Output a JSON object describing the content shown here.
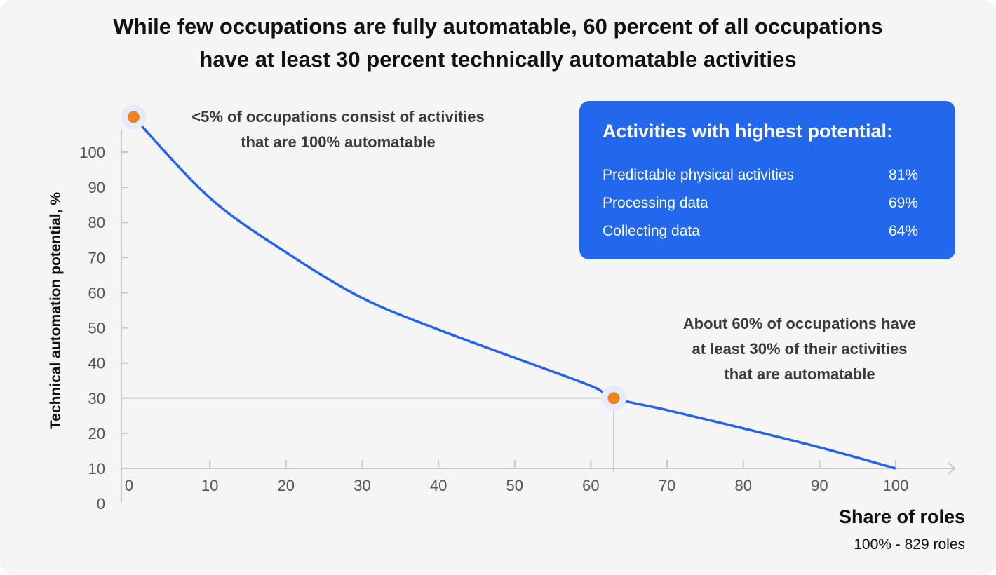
{
  "title_lines": [
    "While few occupations are fully automatable, 60 percent of all occupations",
    "have at least 30 percent technically automatable activities"
  ],
  "chart_data": {
    "type": "line",
    "title": "While few occupations are fully automatable, 60 percent of all occupations have at least 30 percent technically automatable activities",
    "xlabel": "Share of roles",
    "xlabel_sub": "100% - 829 roles",
    "ylabel": "Technical automation potential, %",
    "xlim": [
      0,
      100
    ],
    "ylim": [
      0,
      110
    ],
    "x_ticks": [
      0,
      10,
      20,
      30,
      40,
      50,
      60,
      70,
      80,
      90,
      100
    ],
    "y_ticks": [
      0,
      10,
      20,
      30,
      40,
      50,
      60,
      70,
      80,
      90,
      100
    ],
    "grid": false,
    "series": [
      {
        "x": [
          0,
          10,
          20,
          30,
          40,
          50,
          60,
          63,
          70,
          80,
          90,
          100
        ],
        "y": [
          110,
          87,
          71.5,
          58.5,
          49.5,
          41.5,
          33.5,
          30,
          26.6,
          21.4,
          16,
          10
        ],
        "color": "#2563eb"
      }
    ],
    "highlight_points": [
      {
        "x": 0,
        "y": 110,
        "color": "#f0821e"
      },
      {
        "x": 63,
        "y": 30,
        "color": "#f0821e"
      }
    ],
    "reference_lines": {
      "y": 30,
      "x": 63
    },
    "annotations": [
      {
        "lines": [
          "<5% of occupations consist of activities",
          "that are 100% automatable"
        ]
      },
      {
        "lines": [
          "About 60% of occupations have",
          "at least 30% of their activities",
          "that are automatable"
        ]
      }
    ]
  },
  "info_box": {
    "title": "Activities with highest potential:",
    "color": "#2367ea",
    "rows": [
      {
        "label": "Predictable physical activities",
        "value": "81%"
      },
      {
        "label": "Processing data",
        "value": "69%"
      },
      {
        "label": "Collecting data",
        "value": "64%"
      }
    ]
  }
}
